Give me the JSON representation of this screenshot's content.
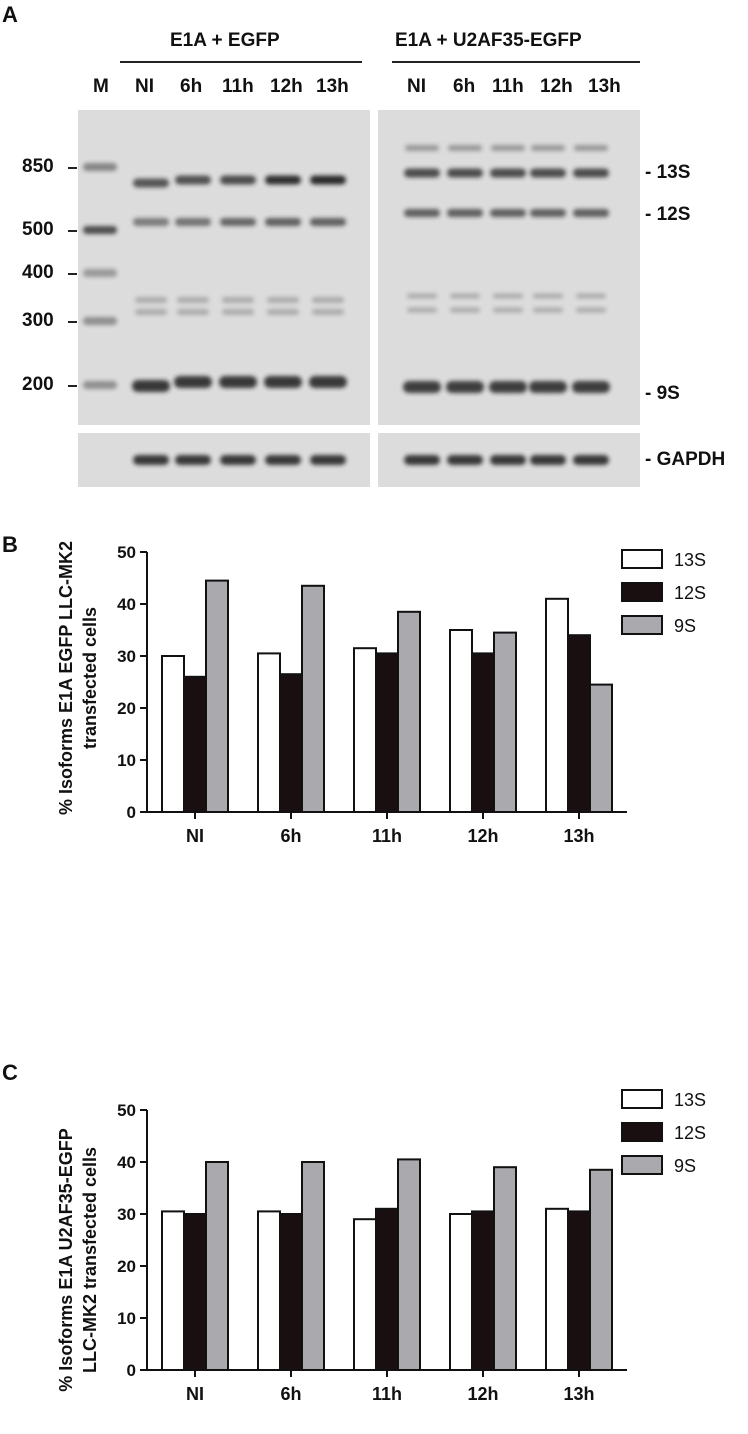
{
  "panels": {
    "a": "A",
    "b": "B",
    "c": "C"
  },
  "gel": {
    "group1_label": "E1A + EGFP",
    "group2_label": "E1A + U2AF35-EGFP",
    "marker_lane_label": "M",
    "lane_labels_1": [
      "NI",
      "6h",
      "11h",
      "12h",
      "13h"
    ],
    "lane_labels_2": [
      "NI",
      "6h",
      "11h",
      "12h",
      "13h"
    ],
    "size_markers": [
      "850",
      "500",
      "400",
      "300",
      "200"
    ],
    "band_labels": [
      "- 13S",
      "- 12S",
      "- 9S"
    ],
    "gapdh_label": "- GAPDH"
  },
  "chart_data": [
    {
      "type": "bar",
      "title": "",
      "xlabel": "",
      "ylabel_lines": [
        "% Isoforms E1A EGFP LLC-MK2",
        "transfected cells"
      ],
      "categories": [
        "NI",
        "6h",
        "11h",
        "12h",
        "13h"
      ],
      "ylim": [
        0,
        50
      ],
      "yticks": [
        "0",
        "10",
        "20",
        "30",
        "40",
        "50"
      ],
      "legend_position": "top-right",
      "series": [
        {
          "name": "13S",
          "color": "#ffffff",
          "values": [
            30,
            30.5,
            31.5,
            35,
            41
          ]
        },
        {
          "name": "12S",
          "color": "#1a0f10",
          "values": [
            26,
            26.5,
            30.5,
            30.5,
            34
          ]
        },
        {
          "name": "9S",
          "color": "#a9a9ae",
          "values": [
            44.5,
            43.5,
            38.5,
            34.5,
            24.5
          ]
        }
      ]
    },
    {
      "type": "bar",
      "title": "",
      "xlabel": "",
      "ylabel_lines": [
        "% Isoforms E1A U2AF35-EGFP",
        "LLC-MK2 transfected cells"
      ],
      "categories": [
        "NI",
        "6h",
        "11h",
        "12h",
        "13h"
      ],
      "ylim": [
        0,
        50
      ],
      "yticks": [
        "0",
        "10",
        "20",
        "30",
        "40",
        "50"
      ],
      "legend_position": "top-right",
      "series": [
        {
          "name": "13S",
          "color": "#ffffff",
          "values": [
            30.5,
            30.5,
            29,
            30,
            31
          ]
        },
        {
          "name": "12S",
          "color": "#1a0f10",
          "values": [
            30,
            30,
            31,
            30.5,
            30.5
          ]
        },
        {
          "name": "9S",
          "color": "#a9a9ae",
          "values": [
            40,
            40,
            40.5,
            39,
            38.5
          ]
        }
      ]
    }
  ]
}
